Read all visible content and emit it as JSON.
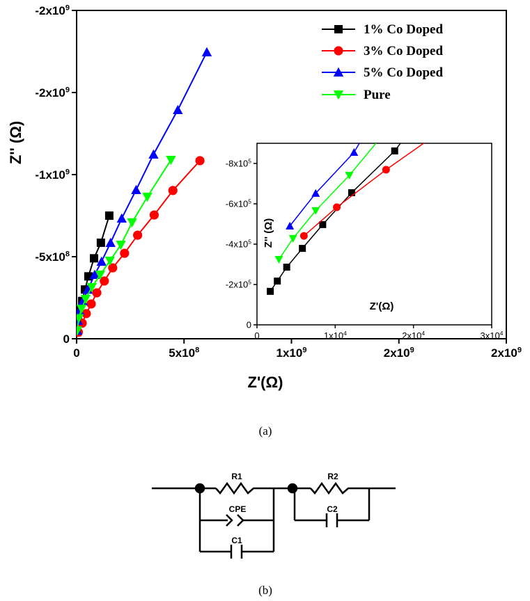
{
  "chart_data": [
    {
      "type": "line",
      "panel": "(a)",
      "xlabel": "Z'(Ω)",
      "ylabel": "Z'' (Ω)",
      "xlim": [
        0,
        2000000000
      ],
      "ylim": [
        0,
        -2000000000
      ],
      "xticks": [
        {
          "value": 0,
          "label": "0"
        },
        {
          "value": 500000000,
          "label": "5x10^8"
        },
        {
          "value": 1000000000,
          "label": "1x10^9"
        },
        {
          "value": 1500000000,
          "label": "2x10^9"
        },
        {
          "value": 2000000000,
          "label": "2x10^9"
        }
      ],
      "yticks": [
        {
          "value": 0,
          "label": "0"
        },
        {
          "value": -500000000,
          "label": "-5x10^8"
        },
        {
          "value": -1000000000,
          "label": "-1x10^9"
        },
        {
          "value": -1500000000,
          "label": "-2x10^9"
        },
        {
          "value": -2000000000,
          "label": "-2x10^9"
        }
      ],
      "grid": false,
      "legend": "top-right",
      "series": [
        {
          "name": "1% Co Doped",
          "color": "#000000",
          "marker": "square",
          "x": [
            2000000,
            6000000,
            13000000,
            26000000,
            39000000,
            55000000,
            81000000,
            113000000,
            152000000
          ],
          "y": [
            -40000000,
            -110000000,
            -174000000,
            -230000000,
            -300000000,
            -380000000,
            -490000000,
            -585000000,
            -750000000
          ]
        },
        {
          "name": "3% Co Doped",
          "color": "#ff0000",
          "marker": "circle",
          "x": [
            8000000,
            26000000,
            45000000,
            68000000,
            94000000,
            129000000,
            168000000,
            223000000,
            284000000,
            361000000,
            448000000,
            574000000
          ],
          "y": [
            -40000000,
            -95000000,
            -153000000,
            -212000000,
            -280000000,
            -352000000,
            -432000000,
            -521000000,
            -631000000,
            -754000000,
            -903000000,
            -1085000000
          ]
        },
        {
          "name": "5% Co Doped",
          "color": "#0000ff",
          "marker": "triangle-up",
          "x": [
            3000000,
            6000000,
            13000000,
            29000000,
            52000000,
            84000000,
            116000000,
            158000000,
            210000000,
            277000000,
            358000000,
            471000000,
            606000000
          ],
          "y": [
            -50000000,
            -110000000,
            -170000000,
            -229000000,
            -300000000,
            -390000000,
            -470000000,
            -585000000,
            -733000000,
            -907000000,
            -1123000000,
            -1394000000,
            -1746000000
          ]
        },
        {
          "name": "Pure",
          "color": "#00ff00",
          "marker": "triangle-down",
          "x": [
            3000000,
            10000000,
            23000000,
            42000000,
            71000000,
            110000000,
            155000000,
            206000000,
            258000000,
            329000000,
            439000000
          ],
          "y": [
            -50000000,
            -125000000,
            -182000000,
            -242000000,
            -314000000,
            -390000000,
            -475000000,
            -572000000,
            -708000000,
            -864000000,
            -1089000000
          ]
        }
      ]
    },
    {
      "type": "line",
      "inset": true,
      "xlabel": "Z'(Ω)",
      "ylabel": "Z'' (Ω)",
      "xlim": [
        0,
        30000
      ],
      "ylim": [
        0,
        -900000
      ],
      "xticks": [
        {
          "value": 0,
          "label": "0"
        },
        {
          "value": 10000,
          "label": "1x10^4"
        },
        {
          "value": 20000,
          "label": "2x10^4"
        },
        {
          "value": 30000,
          "label": "3x10^4"
        }
      ],
      "yticks": [
        {
          "value": 0,
          "label": "0"
        },
        {
          "value": -200000,
          "label": "-2x10^5"
        },
        {
          "value": -400000,
          "label": "-4x10^5"
        },
        {
          "value": -600000,
          "label": "-6x10^5"
        },
        {
          "value": -800000,
          "label": "-8x10^5"
        }
      ],
      "grid": false,
      "series": [
        {
          "name": "1% Co Doped",
          "color": "#000000",
          "marker": "square",
          "x": [
            1700,
            2600,
            3800,
            5800,
            8400,
            12100,
            17600,
            19500
          ],
          "y": [
            -166000,
            -217000,
            -286000,
            -379000,
            -497000,
            -655000,
            -862000,
            -960000
          ]
        },
        {
          "name": "3% Co Doped",
          "color": "#ff0000",
          "marker": "circle",
          "x": [
            6000,
            10200,
            16500,
            23500
          ],
          "y": [
            -441000,
            -583000,
            -769000,
            -960000
          ]
        },
        {
          "name": "5% Co Doped",
          "color": "#0000ff",
          "marker": "triangle-up",
          "x": [
            4200,
            7500,
            12400,
            14000
          ],
          "y": [
            -490000,
            -652000,
            -855000,
            -960000
          ]
        },
        {
          "name": "Pure",
          "color": "#00ff00",
          "marker": "triangle-down",
          "x": [
            2800,
            4600,
            7500,
            11800,
            16500
          ],
          "y": [
            -324000,
            -428000,
            -566000,
            -741000,
            -960000
          ]
        }
      ]
    }
  ],
  "captions": {
    "a": "(a)",
    "b": "(b)"
  },
  "circuit": {
    "r1": "R1",
    "cpe": "CPE",
    "c1": "C1",
    "r2": "R2",
    "c2": "C2"
  }
}
